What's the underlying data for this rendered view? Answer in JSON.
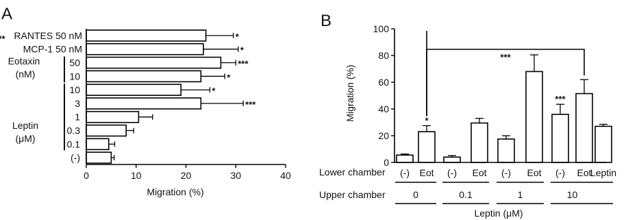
{
  "panels": [
    {
      "letter": "A",
      "xlabel": "Migration (%)",
      "groups": [
        {
          "label": "Eotaxin",
          "unit": "(nM)"
        },
        {
          "label": "Leptin",
          "unit": "(μM)"
        }
      ]
    },
    {
      "letter": "B",
      "ylabel": "Migration (%)",
      "row_labels": {
        "lower": "Lower chamber",
        "upper": "Upper chamber"
      },
      "bottom_label": "Leptin (μM)",
      "upper_values": [
        "0",
        "0.1",
        "1",
        "10"
      ],
      "brackets": [
        {
          "from_bar": 1,
          "to_bar": 9,
          "label": "***"
        },
        {
          "from_bar": 1,
          "to_bar": 7,
          "label": "***"
        }
      ]
    }
  ],
  "chart_data": [
    {
      "type": "bar",
      "orientation": "horizontal",
      "title": "",
      "xlabel": "Migration (%)",
      "xlim": [
        0,
        40
      ],
      "xticks": [
        0,
        10,
        20,
        30,
        40
      ],
      "categories": [
        "RANTES 50 nM",
        "MCP-1 50 nM",
        "50",
        "10",
        "10",
        "3",
        "1",
        "0.3",
        "0.1",
        "(-)"
      ],
      "values": [
        24,
        23.5,
        27,
        23,
        19,
        23,
        10.5,
        8,
        4.5,
        5
      ],
      "errors": [
        5.5,
        7,
        3,
        4.8,
        5.8,
        8.5,
        2.8,
        1.5,
        1.2,
        0.6
      ],
      "significance": [
        "*",
        "*",
        "***",
        "*",
        "*",
        "***",
        "",
        "",
        "",
        ""
      ]
    },
    {
      "type": "bar",
      "title": "",
      "ylabel": "Migration (%)",
      "ylim": [
        0,
        100
      ],
      "yticks": [
        0,
        20,
        40,
        60,
        80,
        100
      ],
      "categories": [
        "(-)",
        "Eot",
        "(-)",
        "Eot",
        "(-)",
        "Eot",
        "(-)",
        "Eot",
        "Leptin"
      ],
      "values": [
        5.5,
        23,
        4,
        29.5,
        17.5,
        68,
        36,
        51.5,
        27
      ],
      "errors": [
        0.8,
        4.5,
        1.2,
        3.5,
        2.5,
        12.5,
        7.5,
        10.5,
        1.5
      ],
      "significance": [
        "",
        "*",
        "",
        "",
        "",
        "",
        "***",
        "",
        ""
      ]
    }
  ]
}
